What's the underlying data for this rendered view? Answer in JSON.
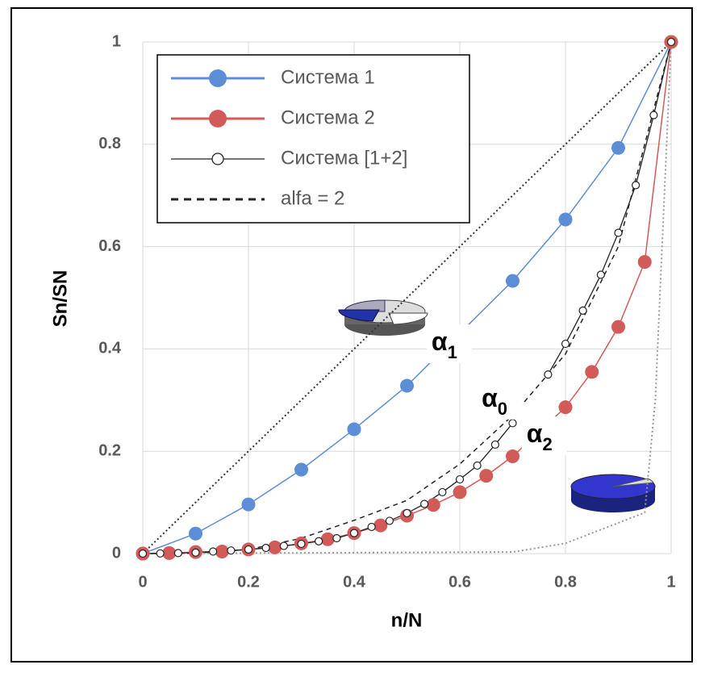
{
  "chart_data": {
    "type": "line",
    "xlabel": "n/N",
    "ylabel": "Sn/SN",
    "xlim": [
      0,
      1
    ],
    "ylim": [
      0,
      1
    ],
    "xticks": [
      0,
      0.2,
      0.4,
      0.6,
      0.8,
      1
    ],
    "yticks": [
      0,
      0.2,
      0.4,
      0.6,
      0.8,
      1
    ],
    "grid": true,
    "legend": "upper left",
    "series": [
      {
        "name": "Система 1",
        "color": "#5b8ed6",
        "marker": "filled",
        "dash": "solid",
        "x": [
          0,
          0.1,
          0.2,
          0.3,
          0.4,
          0.5,
          0.7,
          0.8,
          0.9,
          1
        ],
        "values": [
          0,
          0.039,
          0.096,
          0.164,
          0.243,
          0.328,
          0.533,
          0.653,
          0.793,
          1
        ]
      },
      {
        "name": "Система 2",
        "color": "#d25a58",
        "marker": "filled",
        "dash": "solid",
        "x": [
          0,
          0.05,
          0.1,
          0.15,
          0.2,
          0.25,
          0.3,
          0.35,
          0.4,
          0.45,
          0.5,
          0.55,
          0.6,
          0.65,
          0.7,
          0.8,
          0.85,
          0.9,
          0.95,
          1
        ],
        "values": [
          0,
          0.001,
          0.003,
          0.004,
          0.008,
          0.012,
          0.02,
          0.028,
          0.04,
          0.055,
          0.074,
          0.095,
          0.12,
          0.152,
          0.19,
          0.286,
          0.355,
          0.443,
          0.57,
          1
        ]
      },
      {
        "name": "Система [1+2]",
        "color": "#222222",
        "marker": "open",
        "dash": "solid",
        "x": [
          0,
          0.033,
          0.067,
          0.1,
          0.133,
          0.167,
          0.2,
          0.233,
          0.267,
          0.3,
          0.333,
          0.367,
          0.4,
          0.433,
          0.467,
          0.5,
          0.533,
          0.567,
          0.6,
          0.633,
          0.667,
          0.7,
          0.733,
          0.767,
          0.8,
          0.833,
          0.867,
          0.9,
          0.933,
          0.967,
          1
        ],
        "values": [
          0,
          0.0003,
          0.001,
          0.002,
          0.004,
          0.006,
          0.008,
          0.011,
          0.015,
          0.019,
          0.024,
          0.03,
          0.04,
          0.052,
          0.064,
          0.079,
          0.097,
          0.12,
          0.145,
          0.172,
          0.213,
          0.255,
          null,
          0.35,
          0.41,
          0.475,
          0.545,
          0.627,
          0.72,
          0.857,
          1
        ]
      },
      {
        "name": "alfa = 2",
        "color": "#222222",
        "marker": "none",
        "dash": "dashed",
        "x": [
          0,
          0.1,
          0.2,
          0.3,
          0.4,
          0.5,
          0.6,
          0.7,
          0.8,
          0.9,
          1
        ],
        "values": [
          0,
          0.001,
          0.008,
          0.03,
          0.065,
          0.104,
          0.175,
          0.27,
          0.39,
          0.6,
          1
        ]
      }
    ],
    "reference_lines": [
      {
        "color": "#333333",
        "dash": "dotted",
        "x": [
          0,
          1
        ],
        "values": [
          0,
          1
        ]
      },
      {
        "color": "#999999",
        "dash": "dotted",
        "x": [
          0,
          0.7,
          0.8,
          0.9,
          0.95,
          0.97,
          1
        ],
        "values": [
          0,
          0.003,
          0.02,
          0.06,
          0.08,
          0.3,
          1
        ]
      }
    ],
    "annotations": [
      {
        "text": "α",
        "sub": "1",
        "x": 0.58,
        "y": 0.41
      },
      {
        "text": "α",
        "sub": "0",
        "x": 0.675,
        "y": 0.3
      },
      {
        "text": "α",
        "sub": "2",
        "x": 0.76,
        "y": 0.23
      }
    ]
  }
}
